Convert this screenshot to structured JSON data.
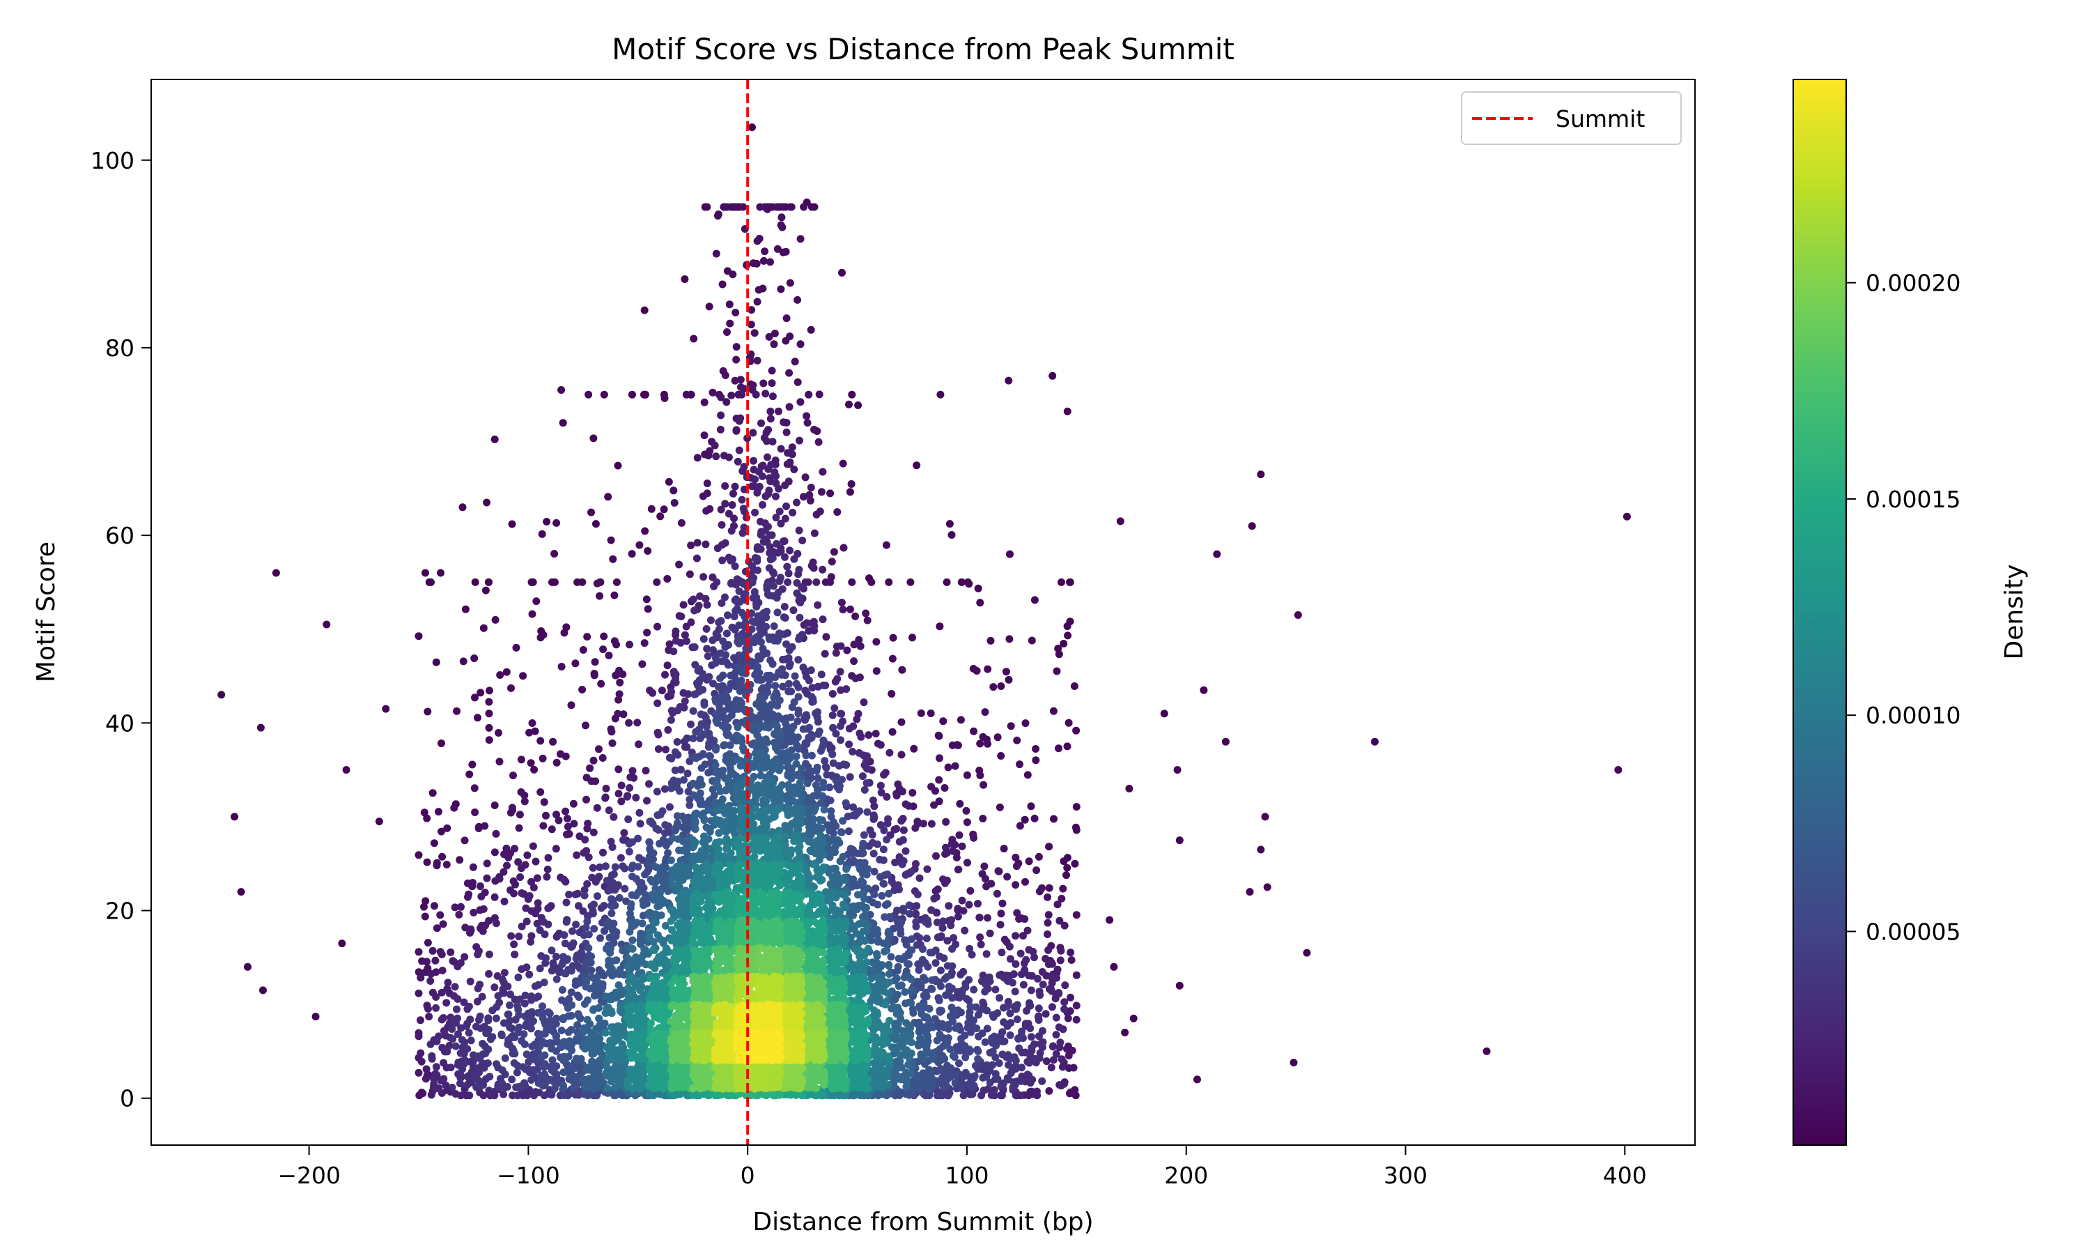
{
  "chart_data": {
    "type": "scatter",
    "title": "Motif Score vs Distance from Peak Summit",
    "xlabel": "Distance from Summit (bp)",
    "ylabel": "Motif Score",
    "xlim": [
      -272,
      432
    ],
    "ylim": [
      -5,
      108.6
    ],
    "xticks": [
      -200,
      -100,
      0,
      100,
      200,
      300,
      400
    ],
    "xtick_labels": [
      "−200",
      "−100",
      "0",
      "100",
      "200",
      "300",
      "400"
    ],
    "yticks": [
      0,
      20,
      40,
      60,
      80,
      100
    ],
    "ytick_labels": [
      "0",
      "20",
      "40",
      "60",
      "80",
      "100"
    ],
    "grid": false,
    "legend": {
      "position": "top-right",
      "entries": [
        {
          "label": "Summit",
          "style": "dashed",
          "color": "#ff0000"
        }
      ]
    },
    "vline": {
      "x": 0,
      "label": "Summit",
      "color": "#ff0000",
      "style": "dashed"
    },
    "colorbar": {
      "label": "Density",
      "colormap": "viridis",
      "range": [
        6e-07,
        0.000247
      ],
      "ticks": [
        5e-05,
        0.0001,
        0.00015,
        0.0002
      ],
      "tick_labels": [
        "0.00005",
        "0.00010",
        "0.00015",
        "0.00020"
      ]
    },
    "core_distribution": {
      "note": "dense bulk of points, x clipped to [-150,150], y >= 0",
      "components": [
        {
          "n": 6000,
          "x": "normal(0, 28*exp(-y/60)+6)",
          "y": "exponential(mean 18), max 95"
        },
        {
          "n": 2500,
          "x": "normal(0, 55)",
          "y": "exponential(mean 16)"
        },
        {
          "n": 2200,
          "x": "uniform(-150, 150)",
          "y": "exponential(mean 13)"
        }
      ]
    },
    "outliers": [
      [
        -240,
        43
      ],
      [
        -234,
        30
      ],
      [
        -231,
        22
      ],
      [
        -228,
        14
      ],
      [
        -222,
        39.5
      ],
      [
        -221,
        11.5
      ],
      [
        -215,
        56
      ],
      [
        -197,
        8.7
      ],
      [
        -192,
        50.5
      ],
      [
        -185,
        16.5
      ],
      [
        -183,
        35
      ],
      [
        -168,
        29.5
      ],
      [
        -165,
        41.5
      ],
      [
        170,
        61.5
      ],
      [
        174,
        33
      ],
      [
        176,
        8.5
      ],
      [
        172,
        7
      ],
      [
        167,
        14
      ],
      [
        165,
        19
      ],
      [
        190,
        41
      ],
      [
        196,
        35
      ],
      [
        197,
        27.5
      ],
      [
        197,
        12
      ],
      [
        205,
        2
      ],
      [
        208,
        43.5
      ],
      [
        214,
        58
      ],
      [
        218,
        38
      ],
      [
        229,
        22
      ],
      [
        230,
        61
      ],
      [
        234,
        66.5
      ],
      [
        234,
        26.5
      ],
      [
        236,
        30
      ],
      [
        237,
        22.5
      ],
      [
        249,
        3.8
      ],
      [
        251,
        51.5
      ],
      [
        255,
        15.5
      ],
      [
        286,
        38
      ],
      [
        337,
        5
      ],
      [
        397,
        35
      ],
      [
        401,
        62
      ],
      [
        2,
        103.5
      ],
      [
        139,
        77
      ],
      [
        119,
        76.5
      ],
      [
        -85,
        75.5
      ],
      [
        -47,
        84
      ],
      [
        27,
        95.5
      ],
      [
        -19,
        95
      ],
      [
        43,
        88
      ],
      [
        -130,
        63
      ],
      [
        -119,
        63.5
      ],
      [
        -140,
        56
      ],
      [
        -147,
        56
      ]
    ]
  }
}
